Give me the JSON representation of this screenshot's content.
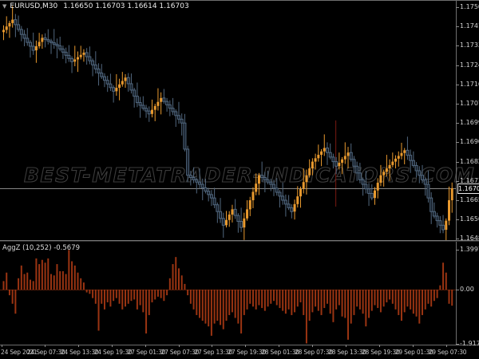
{
  "window": {
    "collapse_arrow": "▼",
    "symbol_period": "EURUSD,M30",
    "ohlc_text": "1.16650 1.16703 1.16614 1.16703"
  },
  "watermark": "BEST-METATRADER-INDICATORS.COM",
  "price_axis": {
    "labels": [
      "1.17500",
      "1.17415",
      "1.17330",
      "1.17245",
      "1.17160",
      "1.17075",
      "1.16990",
      "1.16905",
      "1.16820",
      "1.16735",
      "1.16650",
      "1.16565",
      "1.16480"
    ],
    "current_price": "1.16703"
  },
  "time_axis": {
    "labels": [
      "24 Sep 2021",
      "24 Sep 07:30",
      "24 Sep 13:30",
      "24 Sep 19:30",
      "27 Sep 01:30",
      "27 Sep 07:30",
      "27 Sep 13:30",
      "27 Sep 19:30",
      "28 Sep 01:30",
      "28 Sep 07:30",
      "28 Sep 13:30",
      "28 Sep 19:30",
      "29 Sep 01:30",
      "29 Sep 07:30"
    ]
  },
  "indicator": {
    "name_label": "AggZ (10,252) -0.5679",
    "axis_labels": [
      "1.3997",
      "0.00",
      "-1.9172"
    ]
  },
  "colors": {
    "background": "#000000",
    "bull_candle": "#e8992e",
    "bear_candle_fill": "#161f2a",
    "bear_candle_outline": "#51677e",
    "histogram": "#9a3412",
    "current_price_line": "#a8a8a8",
    "vertical_marker_line": "#7a1a12",
    "axis_text": "#d2d2d2",
    "watermark_outline": "#3c3c3c"
  },
  "chart_data": {
    "type": "candlestick+histogram",
    "symbol": "EURUSD",
    "timeframe": "M30",
    "price_axis_range": [
      1.1648,
      1.175
    ],
    "current_price": 1.16703,
    "grid": "off",
    "candles": {
      "first_open": 1.1739,
      "closes": [
        1.174,
        1.17415,
        1.1743,
        1.17445,
        1.17423,
        1.17402,
        1.1738,
        1.17363,
        1.17345,
        1.17328,
        1.1731,
        1.17328,
        1.17347,
        1.17365,
        1.17358,
        1.17351,
        1.17344,
        1.17337,
        1.1733,
        1.17316,
        1.17302,
        1.17288,
        1.17274,
        1.1726,
        1.1727,
        1.1728,
        1.1729,
        1.173,
        1.17282,
        1.17264,
        1.17246,
        1.17228,
        1.1721,
        1.17194,
        1.17178,
        1.17162,
        1.17146,
        1.1713,
        1.17145,
        1.1716,
        1.17175,
        1.1719,
        1.17163,
        1.17135,
        1.17108,
        1.1708,
        1.17068,
        1.17055,
        1.17043,
        1.1703,
        1.17048,
        1.17065,
        1.17083,
        1.171,
        1.17085,
        1.1707,
        1.17055,
        1.1704,
        1.17023,
        1.17007,
        1.1699,
        1.16875,
        1.1676,
        1.1675,
        1.1674,
        1.1673,
        1.1672,
        1.16705,
        1.1669,
        1.16675,
        1.1666,
        1.1663,
        1.166,
        1.1657,
        1.1654,
        1.16563,
        1.16587,
        1.1661,
        1.16583,
        1.16557,
        1.1653,
        1.1657,
        1.1661,
        1.1665,
        1.16687,
        1.16723,
        1.1676,
        1.1675,
        1.1674,
        1.1673,
        1.1672,
        1.16703,
        1.16685,
        1.16668,
        1.1665,
        1.16633,
        1.16617,
        1.166,
        1.16633,
        1.16667,
        1.167,
        1.1673,
        1.1676,
        1.1679,
        1.1682,
        1.16835,
        1.1685,
        1.16865,
        1.1688,
        1.1686,
        1.1684,
        1.1682,
        1.168,
        1.16815,
        1.1683,
        1.16845,
        1.1686,
        1.1683,
        1.168,
        1.1677,
        1.1674,
        1.1672,
        1.167,
        1.1668,
        1.1666,
        1.16693,
        1.16727,
        1.1676,
        1.16775,
        1.1679,
        1.16805,
        1.1682,
        1.16833,
        1.16845,
        1.16858,
        1.1687,
        1.16848,
        1.16825,
        1.16803,
        1.1678,
        1.1676,
        1.1674,
        1.1672,
        1.1666,
        1.166,
        1.1658,
        1.1656,
        1.1654,
        1.1652,
        1.1656,
        1.1665,
        1.16703
      ]
    },
    "indicator_series": {
      "name": "AggZ",
      "parameters": "10,252",
      "last_value": -0.5679,
      "axis": {
        "max": 1.3997,
        "zero": 0.0,
        "min": -1.9172
      },
      "values": [
        0.3,
        0.6,
        -0.2,
        -0.5,
        -0.85,
        0.4,
        0.85,
        0.55,
        0.6,
        0.35,
        0.3,
        1.1,
        0.9,
        1.05,
        0.95,
        1.1,
        0.55,
        0.5,
        0.9,
        0.65,
        0.65,
        0.55,
        1.4,
        1.0,
        0.85,
        0.6,
        0.4,
        0.25,
        -0.1,
        -0.15,
        -0.3,
        -0.5,
        -1.45,
        -0.5,
        -0.7,
        -0.45,
        -0.6,
        -0.4,
        -0.3,
        -0.5,
        -0.7,
        -0.6,
        -0.5,
        -0.4,
        -0.35,
        -0.7,
        -0.55,
        -0.8,
        -1.55,
        -0.9,
        -0.45,
        -0.35,
        -0.25,
        -0.3,
        -0.4,
        -0.2,
        0.4,
        0.9,
        1.15,
        0.75,
        0.5,
        0.2,
        -0.2,
        -0.5,
        -0.7,
        -0.9,
        -1.0,
        -1.1,
        -1.2,
        -1.3,
        -1.63,
        -1.2,
        -1.1,
        -1.25,
        -1.4,
        -1.1,
        -0.9,
        -0.8,
        -1.0,
        -1.2,
        -1.55,
        -0.9,
        -0.7,
        -0.5,
        -0.6,
        -0.7,
        -0.55,
        -0.65,
        -0.75,
        -0.6,
        -0.5,
        -0.4,
        -0.55,
        -0.65,
        -0.75,
        -0.85,
        -0.7,
        -0.9,
        -0.8,
        -0.6,
        -0.45,
        -0.9,
        -1.9,
        -1.1,
        -0.8,
        -0.6,
        -0.75,
        -0.9,
        -0.65,
        -0.5,
        -0.85,
        -1.15,
        -0.7,
        -0.55,
        -0.95,
        -1.0,
        -1.77,
        -1.2,
        -0.9,
        -0.6,
        -0.7,
        -0.85,
        -1.3,
        -1.0,
        -0.75,
        -0.55,
        -0.65,
        -0.8,
        -0.6,
        -0.45,
        -0.35,
        -0.5,
        -0.7,
        -0.9,
        -1.1,
        -0.8,
        -0.6,
        -0.7,
        -0.85,
        -0.95,
        -1.2,
        -0.9,
        -0.7,
        -0.5,
        -0.6,
        -0.4,
        -0.3,
        0.15,
        0.95,
        0.6,
        -0.5,
        -0.5679
      ]
    },
    "vertical_marker_x_index": 112
  }
}
